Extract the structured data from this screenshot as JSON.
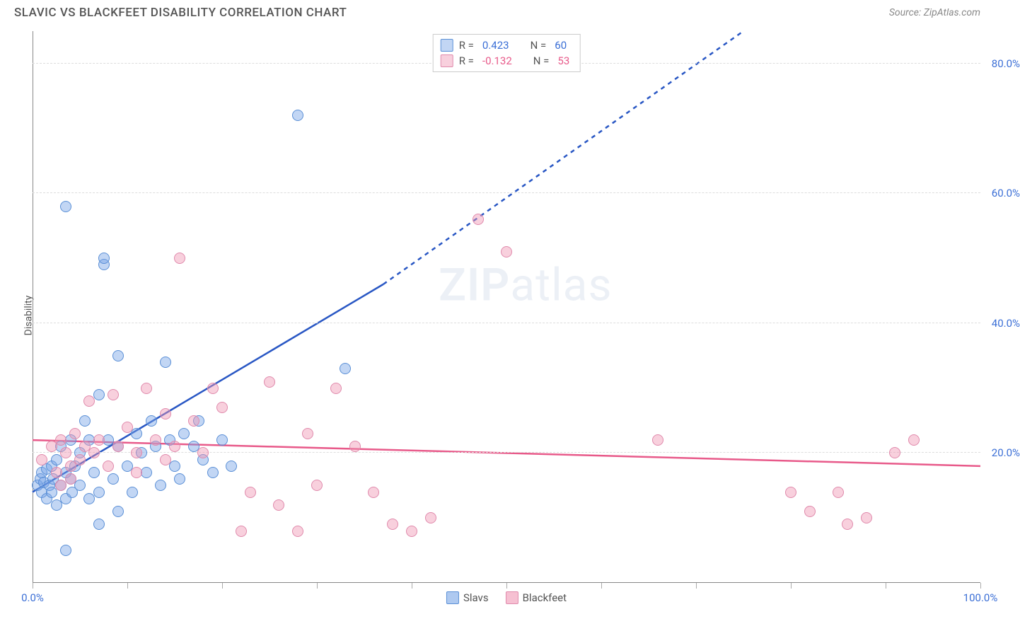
{
  "header": {
    "title": "SLAVIC VS BLACKFEET DISABILITY CORRELATION CHART",
    "source": "Source: ZipAtlas.com"
  },
  "chart": {
    "type": "scatter",
    "y_label": "Disability",
    "watermark": "ZIPatlas",
    "xlim": [
      0,
      100
    ],
    "ylim": [
      0,
      85
    ],
    "x_ticks": [
      0,
      10,
      20,
      30,
      40,
      50,
      60,
      70,
      80,
      90,
      100
    ],
    "x_tick_labels": {
      "0": "0.0%",
      "100": "100.0%"
    },
    "y_ticks": [
      20,
      40,
      60,
      80
    ],
    "y_tick_labels": {
      "20": "20.0%",
      "40": "40.0%",
      "60": "60.0%",
      "80": "80.0%"
    },
    "background_color": "#ffffff",
    "grid_color": "#dddddd",
    "axis_color": "#888888",
    "tick_label_color": "#3b6fd6",
    "marker_radius": 8,
    "series": [
      {
        "name": "Slavs",
        "fill_color": "rgba(120,165,230,0.45)",
        "stroke_color": "#5a8fd6",
        "r_value": "0.423",
        "n_value": "60",
        "regression": {
          "x1": 0,
          "y1": 14,
          "x2_solid": 37,
          "y2_solid": 46,
          "x2_dash": 75,
          "y2_dash": 85,
          "color": "#2957c4",
          "width": 2.5
        },
        "points": [
          [
            0.5,
            15
          ],
          [
            0.8,
            16
          ],
          [
            1,
            17
          ],
          [
            1,
            14
          ],
          [
            1.2,
            15.5
          ],
          [
            1.5,
            13
          ],
          [
            1.5,
            17.5
          ],
          [
            1.8,
            15
          ],
          [
            2,
            14
          ],
          [
            2,
            18
          ],
          [
            2.2,
            16
          ],
          [
            2.5,
            12
          ],
          [
            2.5,
            19
          ],
          [
            3,
            15
          ],
          [
            3,
            21
          ],
          [
            3.5,
            17
          ],
          [
            3.5,
            13
          ],
          [
            4,
            16
          ],
          [
            4,
            22
          ],
          [
            4.2,
            14
          ],
          [
            4.5,
            18
          ],
          [
            5,
            15
          ],
          [
            5,
            20
          ],
          [
            5.5,
            25
          ],
          [
            6,
            13
          ],
          [
            6,
            22
          ],
          [
            6.5,
            17
          ],
          [
            7,
            14
          ],
          [
            7,
            29
          ],
          [
            7.5,
            49
          ],
          [
            7.5,
            50
          ],
          [
            3.5,
            58
          ],
          [
            8,
            22
          ],
          [
            8.5,
            16
          ],
          [
            9,
            21
          ],
          [
            9,
            35
          ],
          [
            10,
            18
          ],
          [
            10.5,
            14
          ],
          [
            11,
            23
          ],
          [
            11.5,
            20
          ],
          [
            12,
            17
          ],
          [
            12.5,
            25
          ],
          [
            13,
            21
          ],
          [
            13.5,
            15
          ],
          [
            14,
            34
          ],
          [
            14.5,
            22
          ],
          [
            15,
            18
          ],
          [
            15.5,
            16
          ],
          [
            16,
            23
          ],
          [
            17,
            21
          ],
          [
            17.5,
            25
          ],
          [
            18,
            19
          ],
          [
            19,
            17
          ],
          [
            20,
            22
          ],
          [
            21,
            18
          ],
          [
            3.5,
            5
          ],
          [
            7,
            9
          ],
          [
            33,
            33
          ],
          [
            28,
            72
          ],
          [
            9,
            11
          ]
        ]
      },
      {
        "name": "Blackfeet",
        "fill_color": "rgba(240,150,180,0.45)",
        "stroke_color": "#e08aac",
        "r_value": "-0.132",
        "n_value": "53",
        "regression": {
          "x1": 0,
          "y1": 22,
          "x2_solid": 100,
          "y2_solid": 18,
          "color": "#e85a8a",
          "width": 2.5
        },
        "points": [
          [
            1,
            19
          ],
          [
            2,
            21
          ],
          [
            2.5,
            17
          ],
          [
            3,
            22
          ],
          [
            3.5,
            20
          ],
          [
            4,
            18
          ],
          [
            4.5,
            23
          ],
          [
            5,
            19
          ],
          [
            5.5,
            21
          ],
          [
            6,
            28
          ],
          [
            6.5,
            20
          ],
          [
            7,
            22
          ],
          [
            8,
            18
          ],
          [
            8.5,
            29
          ],
          [
            9,
            21
          ],
          [
            10,
            24
          ],
          [
            11,
            20
          ],
          [
            12,
            30
          ],
          [
            13,
            22
          ],
          [
            14,
            26
          ],
          [
            15,
            21
          ],
          [
            15.5,
            50
          ],
          [
            17,
            25
          ],
          [
            18,
            20
          ],
          [
            19,
            30
          ],
          [
            20,
            27
          ],
          [
            22,
            8
          ],
          [
            23,
            14
          ],
          [
            25,
            31
          ],
          [
            26,
            12
          ],
          [
            28,
            8
          ],
          [
            29,
            23
          ],
          [
            30,
            15
          ],
          [
            32,
            30
          ],
          [
            34,
            21
          ],
          [
            36,
            14
          ],
          [
            38,
            9
          ],
          [
            40,
            8
          ],
          [
            42,
            10
          ],
          [
            47,
            56
          ],
          [
            50,
            51
          ],
          [
            66,
            22
          ],
          [
            80,
            14
          ],
          [
            82,
            11
          ],
          [
            85,
            14
          ],
          [
            88,
            10
          ],
          [
            91,
            20
          ],
          [
            93,
            22
          ],
          [
            86,
            9
          ],
          [
            3,
            15
          ],
          [
            4,
            16
          ],
          [
            11,
            17
          ],
          [
            14,
            19
          ]
        ]
      }
    ],
    "legend_top": {
      "r_label": "R =",
      "n_label": "N ="
    },
    "legend_bottom": [
      {
        "label": "Slavs",
        "swatch_fill": "rgba(120,165,230,0.6)",
        "swatch_stroke": "#5a8fd6"
      },
      {
        "label": "Blackfeet",
        "swatch_fill": "rgba(240,150,180,0.6)",
        "swatch_stroke": "#e08aac"
      }
    ]
  }
}
